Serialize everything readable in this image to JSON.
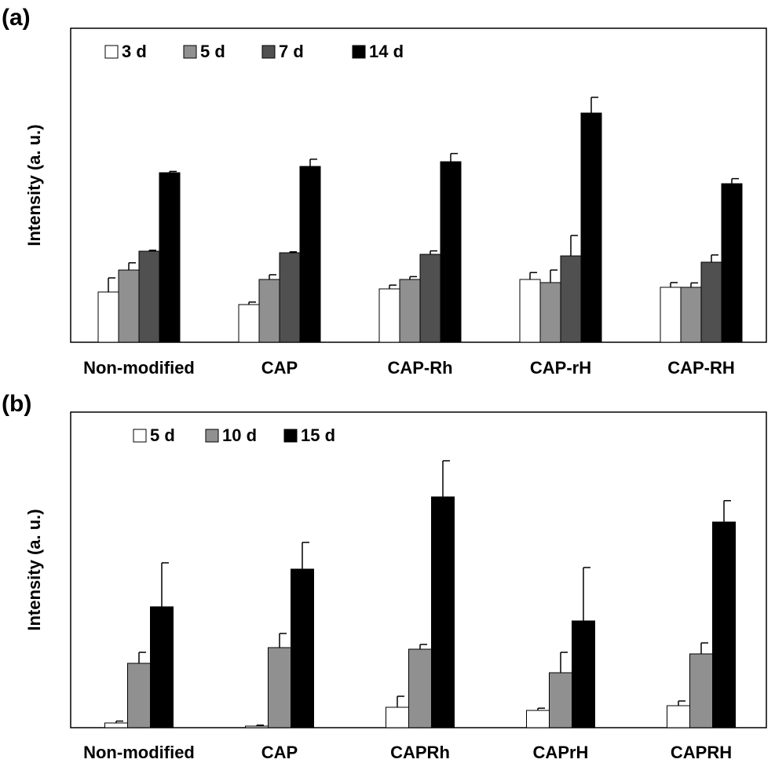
{
  "chart_data": [
    {
      "type": "bar",
      "panel_label": "(a)",
      "ylabel": "Intensity (a. u.)",
      "categories": [
        "Non-modified",
        "CAP",
        "CAP-Rh",
        "CAP-rH",
        "CAP-RH"
      ],
      "ylim": [
        0,
        100
      ],
      "grid": false,
      "legend_position": "top-left",
      "series": [
        {
          "name": "3 d",
          "color": "#ffffff",
          "values": [
            16,
            12,
            17,
            20,
            17.5
          ],
          "errors": [
            4.5,
            0.8,
            1.2,
            2.2,
            1.5
          ]
        },
        {
          "name": "5 d",
          "color": "#909090",
          "values": [
            23,
            20,
            20,
            19,
            17.5
          ],
          "errors": [
            2.3,
            1.5,
            0.9,
            4.0,
            1.4
          ]
        },
        {
          "name": "7 d",
          "color": "#505050",
          "values": [
            29,
            28.5,
            28,
            27.5,
            25.5
          ],
          "errors": [
            0.3,
            0.3,
            1.1,
            6.5,
            2.3
          ]
        },
        {
          "name": "14 d",
          "color": "#000000",
          "values": [
            54,
            56,
            57.5,
            73,
            50.5
          ],
          "errors": [
            0.4,
            2.3,
            2.6,
            5.0,
            1.6
          ]
        }
      ]
    },
    {
      "type": "bar",
      "panel_label": "(b)",
      "ylabel": "Intensity (a. u.)",
      "categories": [
        "Non-modified",
        "CAP",
        "CAPRh",
        "CAPrH",
        "CAPRH"
      ],
      "ylim": [
        0,
        100
      ],
      "grid": false,
      "legend_position": "top-left",
      "series": [
        {
          "name": "5 d",
          "color": "#ffffff",
          "values": [
            1.5,
            0.5,
            6.5,
            5.5,
            7
          ],
          "errors": [
            0.6,
            0.3,
            3.5,
            0.7,
            1.5
          ]
        },
        {
          "name": "10 d",
          "color": "#909090",
          "values": [
            20.5,
            25.5,
            25,
            17.5,
            23.5
          ],
          "errors": [
            3.5,
            4.5,
            1.5,
            6.5,
            3.5
          ]
        },
        {
          "name": "15 d",
          "color": "#000000",
          "values": [
            38.5,
            50.5,
            73.5,
            34,
            65.5
          ],
          "errors": [
            14,
            8.5,
            11.5,
            17,
            6.8
          ]
        }
      ]
    }
  ]
}
